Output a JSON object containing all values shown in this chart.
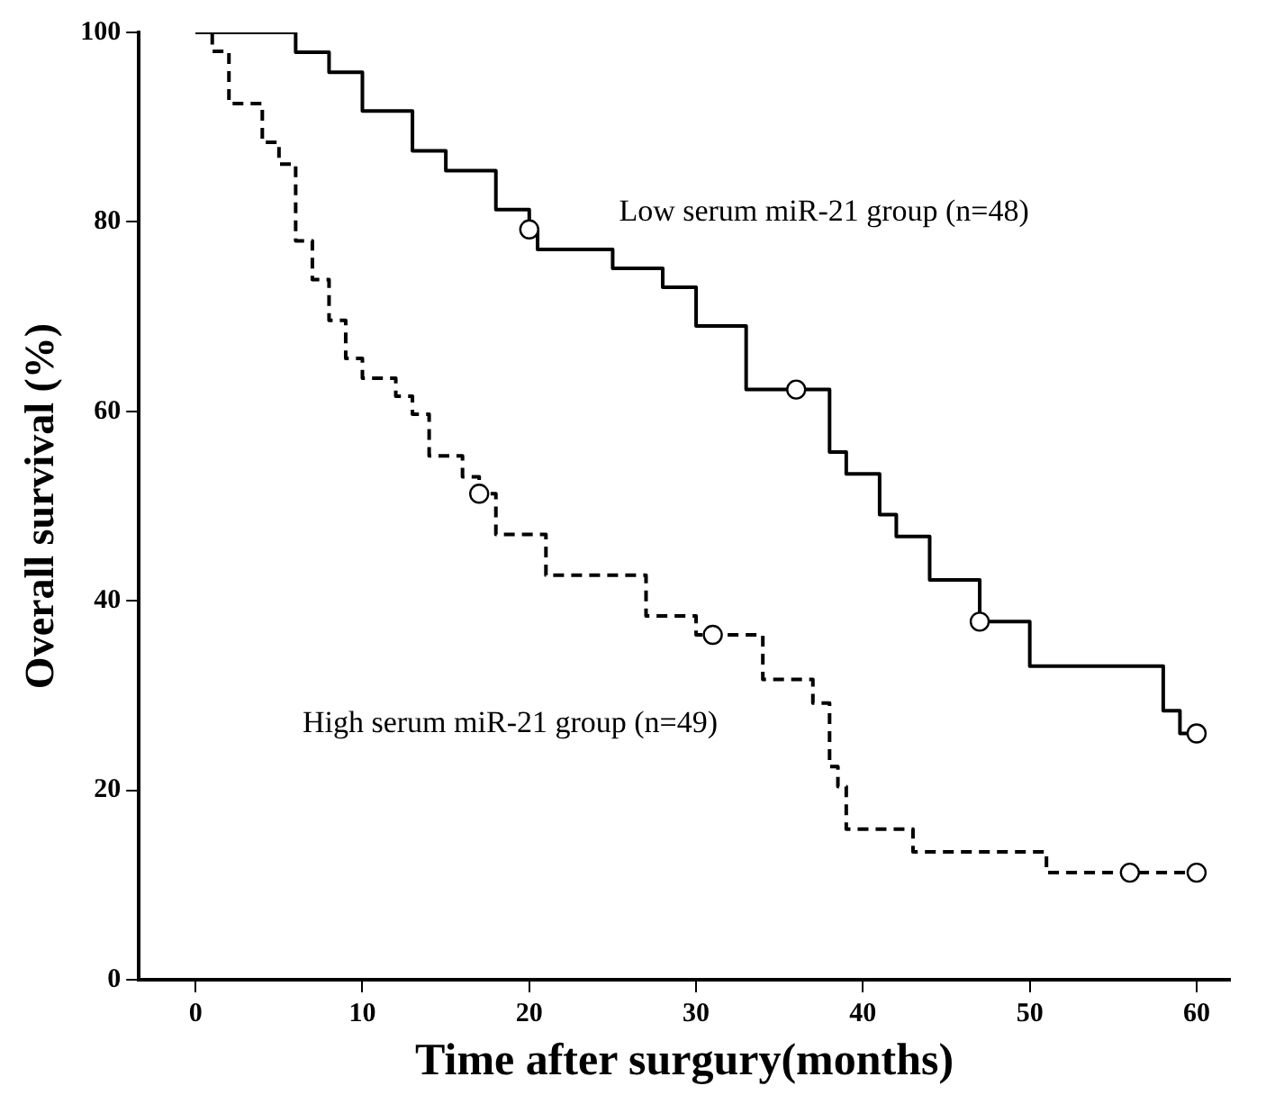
{
  "chart_data": {
    "type": "step",
    "xlabel": "Time after surgury(months)",
    "ylabel": "Overall survival (%)",
    "xlim": [
      -3.4,
      62
    ],
    "xticks": [
      0,
      10,
      20,
      30,
      40,
      50,
      60
    ],
    "ylim": [
      0,
      100
    ],
    "yticks": [
      0,
      20,
      40,
      60,
      80,
      100
    ],
    "grid": false,
    "legend": false,
    "marker": "none",
    "series": [
      {
        "name": "Low serum miR-21 group (n=48)",
        "color": "#000000",
        "line_style": "solid",
        "x": [
          0,
          6,
          8,
          10,
          13,
          15,
          18,
          20,
          20.5,
          25,
          28,
          30,
          33,
          38,
          39,
          41,
          42,
          44,
          47,
          50,
          58,
          59,
          60
        ],
        "values": [
          100,
          97.9,
          95.8,
          91.7,
          87.5,
          85.4,
          81.3,
          79.2,
          77.1,
          75.1,
          73.1,
          69.0,
          62.3,
          55.7,
          53.4,
          49.1,
          46.8,
          42.2,
          37.8,
          33.1,
          28.4,
          26.0,
          26.0
        ]
      },
      {
        "name": "High serum miR-21 group (n=49)",
        "color": "#000000",
        "line_style": "dashed",
        "x": [
          0,
          1,
          2,
          4,
          5,
          6,
          7,
          8,
          9,
          10,
          12,
          13,
          14,
          16,
          17,
          18,
          21,
          27,
          30,
          34,
          37,
          38,
          38.5,
          39,
          43,
          51,
          60
        ],
        "values": [
          100,
          98.0,
          92.5,
          88.4,
          86.1,
          78.0,
          73.9,
          69.6,
          65.6,
          63.5,
          61.6,
          59.7,
          55.3,
          53.1,
          51.3,
          47.0,
          42.7,
          38.4,
          36.4,
          31.7,
          29.2,
          22.5,
          20.4,
          15.9,
          13.5,
          11.3,
          11.3
        ]
      },
      {
        "type": "scatter",
        "marker": "circle",
        "color": "#000000",
        "x": [
          20,
          36,
          47,
          60
        ],
        "values": [
          79.2,
          62.3,
          37.8,
          26.0
        ]
      },
      {
        "type": "scatter",
        "marker": "circle",
        "color": "#000000",
        "x": [
          17,
          31,
          56,
          60
        ],
        "values": [
          51.3,
          36.4,
          11.3,
          11.3
        ]
      }
    ]
  }
}
